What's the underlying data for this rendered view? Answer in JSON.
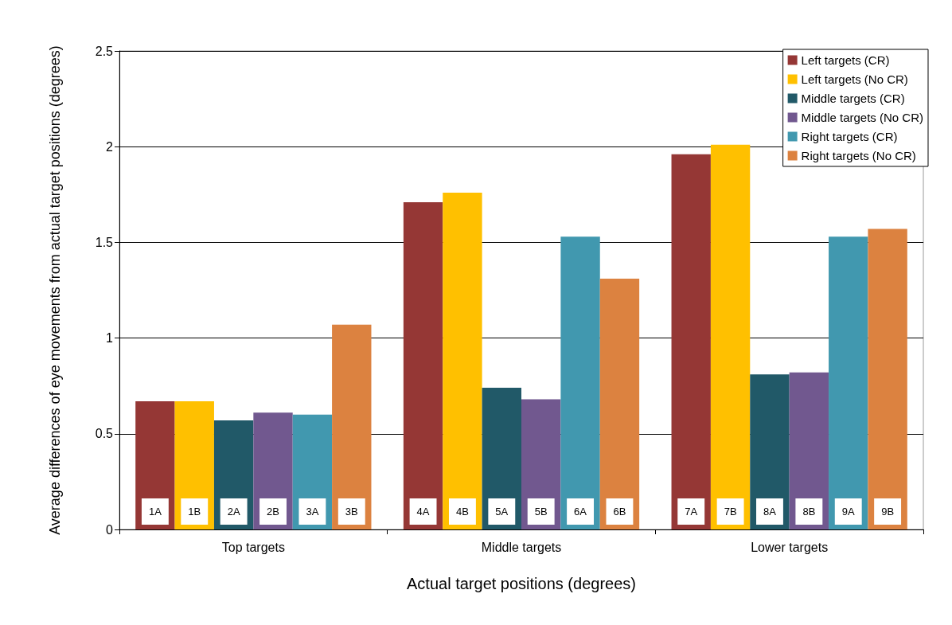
{
  "chart_data": {
    "type": "bar",
    "xlabel": "Actual target positions (degrees)",
    "ylabel": "Average differences of eye movements from actual target positions (degrees)",
    "categories": [
      "Top targets",
      "Middle targets",
      "Lower targets"
    ],
    "series": [
      {
        "name": "Left targets (CR)",
        "color": "#953735",
        "values": [
          0.67,
          1.71,
          1.96
        ]
      },
      {
        "name": "Left targets (No CR)",
        "color": "#ffc000",
        "values": [
          0.67,
          1.76,
          2.01
        ]
      },
      {
        "name": "Middle targets (CR)",
        "color": "#215968",
        "values": [
          0.57,
          0.74,
          0.81
        ]
      },
      {
        "name": "Middle targets (No CR)",
        "color": "#71588f",
        "values": [
          0.61,
          0.68,
          0.82
        ]
      },
      {
        "name": "Right targets (CR)",
        "color": "#4198af",
        "values": [
          0.6,
          1.53,
          1.53
        ]
      },
      {
        "name": "Right targets (No CR)",
        "color": "#dc8240",
        "values": [
          1.07,
          1.31,
          1.57
        ]
      }
    ],
    "annotations": [
      "1A",
      "1B",
      "2A",
      "2B",
      "3A",
      "3B",
      "4A",
      "4B",
      "5A",
      "5B",
      "6A",
      "6B",
      "7A",
      "7B",
      "8A",
      "8B",
      "9A",
      "9B"
    ],
    "ylim": [
      0,
      2.5
    ],
    "yticks": [
      0,
      0.5,
      1,
      1.5,
      2,
      2.5
    ],
    "grid": "y",
    "legend": "top right"
  }
}
